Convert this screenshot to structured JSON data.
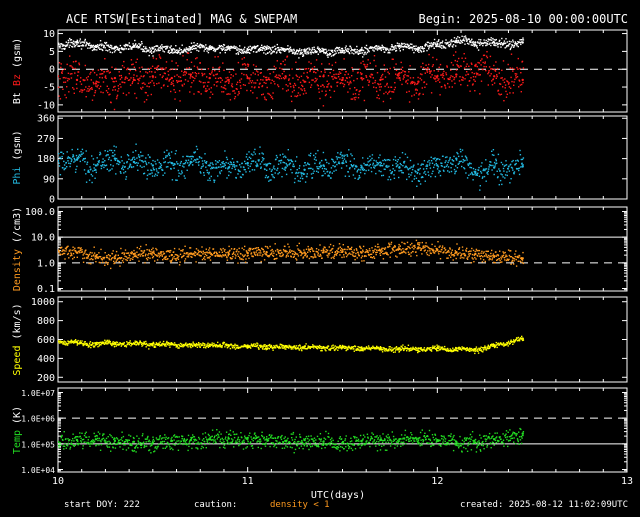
{
  "header": {
    "title": "ACE RTSW[Estimated] MAG & SWEPAM",
    "begin_label": "Begin: 2025-08-10 00:00:00UTC"
  },
  "footer": {
    "start_doy": "start DOY: 222",
    "caution": "caution:",
    "density_note": "density < 1",
    "created": "created: 2025-08-12 11:02:09UTC"
  },
  "colors": {
    "background": "#000000",
    "axes": "#ffffff",
    "bt": "#ffffff",
    "bz": "#ff1a1a",
    "phi": "#22b8e0",
    "density": "#ff9a1f",
    "speed": "#ffff00",
    "temp": "#22dd22"
  },
  "chart_data": [
    {
      "type": "scatter",
      "panel": "mag",
      "ylabel_parts": [
        "Bt",
        "Bz",
        "(gsm)"
      ],
      "xlim": [
        10,
        13
      ],
      "ylim": [
        -12,
        11
      ],
      "yticks": [
        10,
        5,
        0,
        -5,
        -10
      ],
      "reference_lines": [
        {
          "y": 0,
          "style": "dashed"
        }
      ],
      "series": [
        {
          "name": "Bt",
          "x": [
            10.0,
            10.1,
            10.2,
            10.3,
            10.4,
            10.5,
            10.6,
            10.7,
            10.8,
            10.9,
            11.0,
            11.1,
            11.2,
            11.3,
            11.4,
            11.5,
            11.6,
            11.7,
            11.8,
            11.9,
            12.0,
            12.1,
            12.2,
            12.3,
            12.45
          ],
          "values": [
            7.0,
            7.5,
            6.5,
            6.0,
            6.5,
            5.8,
            5.5,
            6.0,
            6.2,
            5.8,
            5.5,
            6.0,
            5.5,
            5.0,
            5.5,
            5.2,
            5.5,
            6.0,
            6.5,
            6.0,
            7.0,
            8.0,
            7.5,
            7.5,
            7.5
          ]
        },
        {
          "name": "Bz",
          "x": [
            10.0,
            10.1,
            10.2,
            10.3,
            10.4,
            10.5,
            10.6,
            10.7,
            10.8,
            10.9,
            11.0,
            11.1,
            11.2,
            11.3,
            11.4,
            11.5,
            11.6,
            11.7,
            11.8,
            11.9,
            12.0,
            12.1,
            12.2,
            12.3,
            12.45
          ],
          "values": [
            -2.0,
            -3.0,
            -4.0,
            -2.5,
            -3.0,
            -2.0,
            -2.5,
            -1.5,
            -2.5,
            -3.0,
            -2.5,
            -3.0,
            -2.0,
            -3.5,
            -2.0,
            -3.0,
            -2.5,
            -3.0,
            -2.5,
            -3.5,
            -2.0,
            -1.5,
            1.0,
            -2.0,
            -3.0
          ]
        }
      ]
    },
    {
      "type": "scatter",
      "panel": "phi",
      "ylabel_parts": [
        "Phi",
        "(gsm)"
      ],
      "xlim": [
        10,
        13
      ],
      "ylim": [
        0,
        370
      ],
      "yticks": [
        360,
        270,
        180,
        90,
        0
      ],
      "series": [
        {
          "name": "Phi",
          "x": [
            10.0,
            10.1,
            10.2,
            10.3,
            10.4,
            10.5,
            10.6,
            10.7,
            10.8,
            10.9,
            11.0,
            11.1,
            11.2,
            11.3,
            11.4,
            11.5,
            11.6,
            11.7,
            11.8,
            11.9,
            12.0,
            12.1,
            12.2,
            12.3,
            12.45
          ],
          "values": [
            170,
            175,
            150,
            180,
            165,
            150,
            160,
            165,
            150,
            140,
            160,
            150,
            140,
            130,
            150,
            160,
            140,
            150,
            140,
            130,
            150,
            180,
            120,
            140,
            145
          ]
        }
      ]
    },
    {
      "type": "scatter",
      "panel": "density",
      "ylabel_parts": [
        "Density",
        "(/cm3)"
      ],
      "xlim": [
        10,
        13
      ],
      "yscale": "log",
      "ylim": [
        0.08,
        150
      ],
      "yticks": [
        100.0,
        10.0,
        1.0,
        0.1
      ],
      "ytick_labels": [
        "100.0",
        "10.0",
        "1.0",
        "0.1"
      ],
      "reference_lines": [
        {
          "y": 10,
          "style": "solid"
        },
        {
          "y": 1,
          "style": "dashed"
        }
      ],
      "series": [
        {
          "name": "Density",
          "x": [
            10.0,
            10.1,
            10.2,
            10.3,
            10.4,
            10.5,
            10.6,
            10.7,
            10.8,
            10.9,
            11.0,
            11.1,
            11.2,
            11.3,
            11.4,
            11.5,
            11.6,
            11.7,
            11.8,
            11.9,
            12.0,
            12.1,
            12.2,
            12.3,
            12.45
          ],
          "values": [
            3.0,
            2.5,
            1.8,
            1.5,
            2.2,
            2.5,
            2.0,
            2.3,
            2.5,
            2.2,
            2.4,
            2.6,
            2.8,
            2.5,
            3.0,
            2.8,
            2.5,
            3.0,
            3.5,
            4.0,
            3.2,
            2.5,
            2.2,
            1.8,
            1.5
          ]
        }
      ]
    },
    {
      "type": "scatter",
      "panel": "speed",
      "ylabel_parts": [
        "Speed",
        "(km/s)"
      ],
      "xlim": [
        10,
        13
      ],
      "ylim": [
        150,
        1050
      ],
      "yticks": [
        1000,
        800,
        600,
        400,
        200
      ],
      "series": [
        {
          "name": "Speed",
          "x": [
            10.0,
            10.1,
            10.2,
            10.3,
            10.4,
            10.5,
            10.6,
            10.7,
            10.8,
            10.9,
            11.0,
            11.1,
            11.2,
            11.3,
            11.4,
            11.5,
            11.6,
            11.7,
            11.8,
            11.9,
            12.0,
            12.1,
            12.2,
            12.3,
            12.45
          ],
          "values": [
            580,
            570,
            560,
            565,
            560,
            555,
            550,
            545,
            545,
            540,
            535,
            530,
            530,
            525,
            520,
            515,
            515,
            510,
            505,
            505,
            510,
            505,
            495,
            540,
            610
          ]
        }
      ]
    },
    {
      "type": "scatter",
      "panel": "temp",
      "ylabel_parts": [
        "Temp",
        "(K)"
      ],
      "xlim": [
        10,
        13
      ],
      "xticks": [
        10,
        11,
        12,
        13
      ],
      "xlabel": "UTC(days)",
      "yscale": "log",
      "ylim": [
        8000,
        15000000
      ],
      "yticks": [
        10000000,
        1000000,
        100000,
        10000
      ],
      "ytick_labels": [
        "1.0E+07",
        "1.0E+06",
        "1.0E+05",
        "1.0E+04"
      ],
      "reference_lines": [
        {
          "y": 1000000,
          "style": "dashed"
        },
        {
          "y": 100000,
          "style": "solid"
        }
      ],
      "series": [
        {
          "name": "Temp",
          "x": [
            10.0,
            10.1,
            10.2,
            10.3,
            10.4,
            10.5,
            10.6,
            10.7,
            10.8,
            10.9,
            11.0,
            11.1,
            11.2,
            11.3,
            11.4,
            11.5,
            11.6,
            11.7,
            11.8,
            11.9,
            12.0,
            12.1,
            12.2,
            12.3,
            12.45
          ],
          "values": [
            120000,
            140000,
            150000,
            130000,
            120000,
            110000,
            130000,
            140000,
            150000,
            160000,
            170000,
            150000,
            130000,
            140000,
            120000,
            110000,
            130000,
            140000,
            150000,
            160000,
            140000,
            120000,
            110000,
            150000,
            250000
          ]
        }
      ]
    }
  ]
}
